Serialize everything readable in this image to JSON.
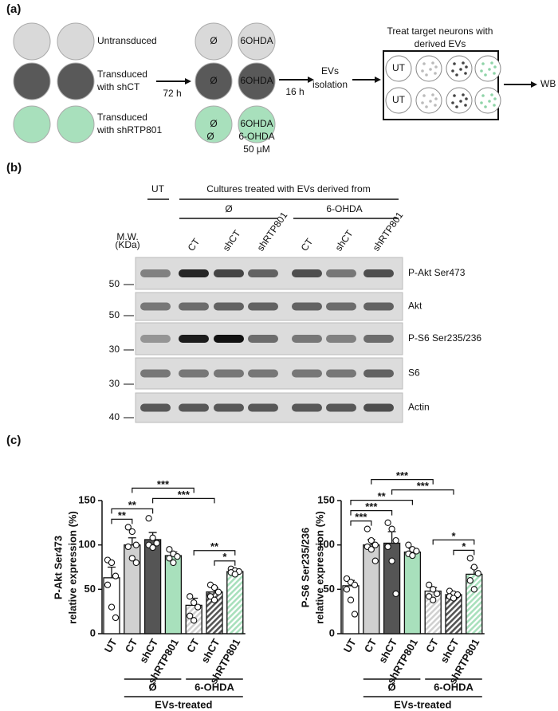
{
  "panel_a": {
    "label": "(a)",
    "groups": [
      [
        "Untransduced"
      ],
      [
        "Transduced",
        "with shCT"
      ],
      [
        "Transduced",
        "with shRTP801"
      ]
    ],
    "step1": "72 h",
    "circle_labels": [
      "Ø",
      "6OHDA"
    ],
    "treatment": [
      "Ø",
      "6-OHDA",
      "50 µM"
    ],
    "step2": "16 h",
    "isolation": [
      "EVs",
      "isolation"
    ],
    "treat_title": [
      "Treat target neurons with",
      "derived EVs"
    ],
    "well_label": "UT",
    "readout": "WB"
  },
  "panel_b": {
    "label": "(b)",
    "ut": "UT",
    "header": "Cultures treated with EVs derived from",
    "conditions": [
      "Ø",
      "6-OHDA"
    ],
    "lanes": [
      "CT",
      "shCT",
      "shRTP801",
      "CT",
      "shCT",
      "shRTP801"
    ],
    "mw_header": [
      "M.W.",
      "(KDa)"
    ],
    "rows": [
      {
        "mw": "50",
        "label": "P-Akt Ser473"
      },
      {
        "mw": "50",
        "label": "Akt"
      },
      {
        "mw": "30",
        "label": "P-S6 Ser235/236"
      },
      {
        "mw": "30",
        "label": "S6"
      },
      {
        "mw": "40",
        "label": "Actin"
      }
    ]
  },
  "panel_c": {
    "label": "(c)"
  },
  "chart_data": [
    {
      "type": "bar",
      "y_label": [
        "P-Akt Ser473",
        "relative expression (%)"
      ],
      "categories": [
        "UT",
        "CT",
        "shCT",
        "shRTP801",
        "CT",
        "shCT",
        "shRTP801"
      ],
      "values": [
        63,
        100,
        106,
        88,
        32,
        47,
        70
      ],
      "errors": [
        12,
        8,
        8,
        4,
        8,
        5,
        2
      ],
      "points": [
        [
          83,
          80,
          65,
          55,
          30,
          18
        ],
        [
          120,
          115,
          100,
          98,
          85,
          80
        ],
        [
          130,
          108,
          102,
          100,
          97
        ],
        [
          95,
          90,
          87,
          85,
          80
        ],
        [
          42,
          35,
          30,
          20,
          15
        ],
        [
          55,
          52,
          47,
          42,
          38
        ],
        [
          73,
          71,
          70,
          69,
          67
        ]
      ],
      "colors": [
        "#ffffff",
        "#d0d0d0",
        "#555555",
        "#a8e0bc",
        "#d0d0d0",
        "#555555",
        "#a8e0bc"
      ],
      "hatched": [
        false,
        false,
        false,
        false,
        true,
        true,
        true
      ],
      "ylim": [
        0,
        150
      ],
      "yticks": [
        0,
        50,
        100,
        150
      ],
      "brackets": [
        {
          "from": 0,
          "to": 1,
          "label": "**"
        },
        {
          "from": 0,
          "to": 2,
          "label": "**"
        },
        {
          "from": 5,
          "to": 6,
          "label": "*"
        },
        {
          "from": 4,
          "to": 6,
          "label": "**"
        },
        {
          "from": 2,
          "to": 5,
          "label": "***"
        },
        {
          "from": 1,
          "to": 4,
          "label": "***"
        }
      ],
      "groups": [
        {
          "label": "Ø",
          "from": 1,
          "to": 3
        },
        {
          "label": "6-OHDA",
          "from": 4,
          "to": 6
        },
        {
          "label": "EVs-treated",
          "from": 1,
          "to": 6
        }
      ]
    },
    {
      "type": "bar",
      "y_label": [
        "P-S6 Ser235/236",
        "relative expression (%)"
      ],
      "categories": [
        "UT",
        "CT",
        "shCT",
        "shRTP801",
        "CT",
        "shCT",
        "shRTP801"
      ],
      "values": [
        54,
        100,
        102,
        92,
        48,
        44,
        67
      ],
      "errors": [
        6,
        6,
        13,
        4,
        4,
        2,
        7
      ],
      "points": [
        [
          62,
          58,
          55,
          50,
          38,
          22
        ],
        [
          118,
          105,
          100,
          98,
          95,
          82
        ],
        [
          125,
          118,
          105,
          98,
          82,
          45
        ],
        [
          100,
          95,
          93,
          90,
          88
        ],
        [
          55,
          50,
          45,
          42,
          38
        ],
        [
          48,
          45,
          44,
          42,
          40
        ],
        [
          85,
          75,
          68,
          60,
          50
        ]
      ],
      "colors": [
        "#ffffff",
        "#d0d0d0",
        "#555555",
        "#a8e0bc",
        "#d0d0d0",
        "#555555",
        "#a8e0bc"
      ],
      "hatched": [
        false,
        false,
        false,
        false,
        true,
        true,
        true
      ],
      "ylim": [
        0,
        150
      ],
      "yticks": [
        0,
        50,
        100,
        150
      ],
      "brackets": [
        {
          "from": 0,
          "to": 1,
          "label": "***"
        },
        {
          "from": 0,
          "to": 2,
          "label": "***"
        },
        {
          "from": 0,
          "to": 3,
          "label": "**"
        },
        {
          "from": 5,
          "to": 6,
          "label": "*"
        },
        {
          "from": 4,
          "to": 6,
          "label": "*"
        },
        {
          "from": 2,
          "to": 5,
          "label": "***"
        },
        {
          "from": 1,
          "to": 4,
          "label": "***"
        }
      ],
      "groups": [
        {
          "label": "Ø",
          "from": 1,
          "to": 3
        },
        {
          "label": "6-OHDA",
          "from": 4,
          "to": 6
        },
        {
          "label": "EVs-treated",
          "from": 1,
          "to": 6
        }
      ]
    }
  ]
}
